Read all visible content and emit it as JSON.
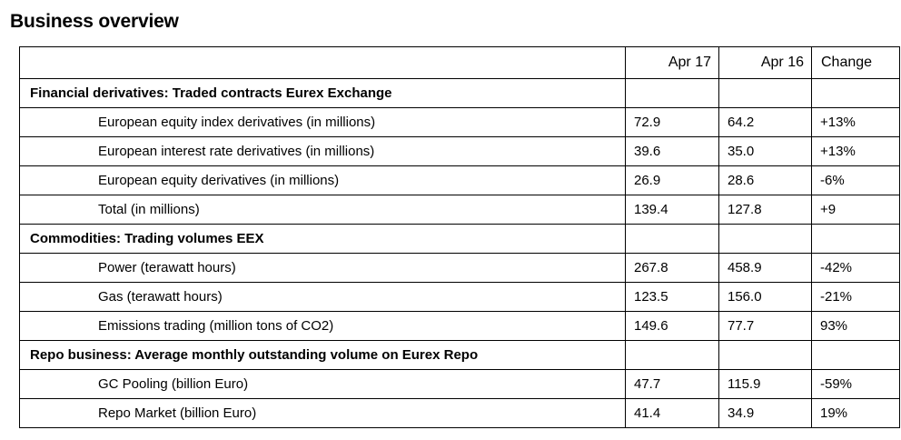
{
  "title": "Business overview",
  "columns": {
    "a": "Apr 17",
    "b": "Apr 16",
    "change": "Change"
  },
  "rows": [
    {
      "type": "section",
      "label": "Financial derivatives: Traded contracts Eurex Exchange"
    },
    {
      "type": "item",
      "label": "European equity index derivatives  (in millions)",
      "a": "72.9",
      "b": "64.2",
      "change": "+13%"
    },
    {
      "type": "item",
      "label": "European interest rate derivatives   (in millions)",
      "a": "39.6",
      "b": "35.0",
      "change": "+13%"
    },
    {
      "type": "item",
      "label": "European equity derivatives   (in millions)",
      "a": "26.9",
      "b": "28.6",
      "change": "-6%"
    },
    {
      "type": "item",
      "label": "Total  (in millions)",
      "a": "139.4",
      "b": "127.8",
      "change": "+9"
    },
    {
      "type": "section",
      "label": "Commodities: Trading volumes EEX"
    },
    {
      "type": "item",
      "label": "Power (terawatt hours)",
      "a": "267.8",
      "b": "458.9",
      "change": "-42%"
    },
    {
      "type": "item",
      "label": "Gas (terawatt hours)",
      "a": "123.5",
      "b": "156.0",
      "change": "-21%"
    },
    {
      "type": "item",
      "label": "Emissions trading (million tons of CO2)",
      "a": "149.6",
      "b": "77.7",
      "change": "93%"
    },
    {
      "type": "section",
      "label": "Repo business: Average monthly outstanding volume on Eurex Repo"
    },
    {
      "type": "item",
      "label": "GC Pooling (billion Euro)",
      "a": "47.7",
      "b": "115.9",
      "change": "-59%"
    },
    {
      "type": "item",
      "label": "Repo Market (billion Euro)",
      "a": "41.4",
      "b": "34.9",
      "change": "19%"
    }
  ]
}
